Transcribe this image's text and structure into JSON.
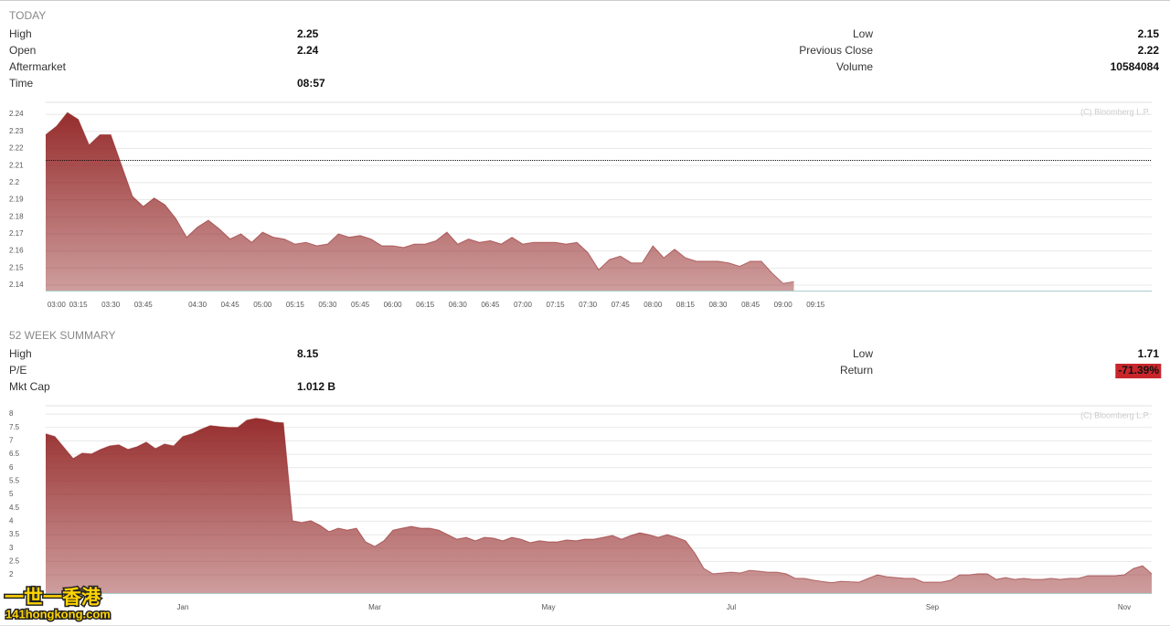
{
  "today": {
    "title": "TODAY",
    "left": [
      {
        "label": "High",
        "value": 2.25
      },
      {
        "label": "Open",
        "value": 2.24
      },
      {
        "label": "Aftermarket"
      },
      {
        "label": "Time",
        "value": "08:57"
      }
    ],
    "right": [
      {
        "label": "Low",
        "value": 2.15
      },
      {
        "label": "Previous Close",
        "value": 2.22
      },
      {
        "label": "Volume",
        "value": 10584084
      }
    ]
  },
  "summary": {
    "title": "52 WEEK SUMMARY",
    "left": [
      {
        "label": "High",
        "value": 8.15
      },
      {
        "label": "P/E"
      },
      {
        "label": "Mkt Cap",
        "value": "1.012 B"
      }
    ],
    "right": [
      {
        "label": "Low",
        "value": 1.71
      },
      {
        "label": "Return",
        "value": "-71.39%",
        "background": "#c9262c"
      }
    ]
  },
  "watermark": {
    "line1": "一世一香港",
    "line2": "141hongkong.com"
  },
  "chart_data": [
    {
      "type": "area",
      "source": "(C) Bloomberg L.P.",
      "color": "#932626",
      "grid": true,
      "categories": [
        null,
        "03:00",
        null,
        "03:15",
        null,
        null,
        "03:30",
        null,
        null,
        "03:45",
        null,
        null,
        null,
        null,
        "04:30",
        null,
        null,
        "04:45",
        null,
        null,
        "05:00",
        null,
        null,
        "05:15",
        null,
        null,
        "05:30",
        null,
        null,
        "05:45",
        null,
        null,
        "06:00",
        null,
        null,
        "06:15",
        null,
        null,
        "06:30",
        null,
        null,
        "06:45",
        null,
        null,
        "07:00",
        null,
        null,
        "07:15",
        null,
        null,
        "07:30",
        null,
        null,
        "07:45",
        null,
        null,
        "08:00",
        null,
        null,
        "08:15",
        null,
        null,
        "08:30",
        null,
        null,
        "08:45",
        null,
        null,
        "09:00",
        null,
        null,
        "09:15",
        null,
        null,
        null,
        null,
        null,
        null,
        null,
        null,
        null,
        null,
        null,
        null,
        null,
        null,
        null,
        null,
        null,
        null,
        null,
        null,
        null,
        null,
        null,
        null,
        null,
        null,
        null,
        null,
        null,
        null,
        null
      ],
      "values": [
        2.228,
        2.233,
        2.241,
        2.237,
        2.222,
        2.228,
        2.228,
        2.21,
        2.192,
        2.186,
        2.191,
        2.187,
        2.179,
        2.168,
        2.174,
        2.178,
        2.173,
        2.167,
        2.17,
        2.165,
        2.171,
        2.168,
        2.167,
        2.164,
        2.165,
        2.163,
        2.164,
        2.17,
        2.168,
        2.169,
        2.167,
        2.163,
        2.163,
        2.162,
        2.164,
        2.164,
        2.166,
        2.171,
        2.164,
        2.167,
        2.165,
        2.166,
        2.164,
        2.168,
        2.164,
        2.165,
        2.165,
        2.165,
        2.164,
        2.165,
        2.159,
        2.149,
        2.155,
        2.157,
        2.153,
        2.153,
        2.163,
        2.156,
        2.161,
        2.156,
        2.154,
        2.154,
        2.154,
        2.153,
        2.151,
        2.154,
        2.154,
        2.147,
        2.141,
        2.142,
        null,
        null,
        null,
        null,
        null,
        null,
        null,
        null,
        null,
        null,
        null,
        null,
        null,
        null,
        null,
        null,
        null,
        null,
        null,
        null,
        null,
        null,
        null,
        null,
        null,
        null,
        null,
        null,
        null,
        null,
        null,
        null,
        null
      ],
      "reference_line": 2.213,
      "ylim": [
        2.1368,
        2.247
      ],
      "yticks": [
        2.14,
        2.15,
        2.16,
        2.17,
        2.18,
        2.19,
        2.2,
        2.21,
        2.22,
        2.23,
        2.24
      ]
    },
    {
      "type": "area",
      "source": "(C) Bloomberg L.P.",
      "color": "#932626",
      "grid": true,
      "categories": [
        null,
        null,
        null,
        null,
        null,
        null,
        null,
        null,
        null,
        null,
        null,
        null,
        null,
        null,
        null,
        "Jan",
        null,
        null,
        null,
        null,
        null,
        null,
        null,
        null,
        null,
        null,
        null,
        null,
        null,
        null,
        null,
        null,
        null,
        null,
        null,
        null,
        "Mar",
        null,
        null,
        null,
        null,
        null,
        null,
        null,
        null,
        null,
        null,
        null,
        null,
        null,
        null,
        null,
        null,
        null,
        null,
        "May",
        null,
        null,
        null,
        null,
        null,
        null,
        null,
        null,
        null,
        null,
        null,
        null,
        null,
        null,
        null,
        null,
        null,
        null,
        null,
        "Jul",
        null,
        null,
        null,
        null,
        null,
        null,
        null,
        null,
        null,
        null,
        null,
        null,
        null,
        null,
        null,
        null,
        null,
        null,
        null,
        null,
        null,
        "Sep",
        null,
        null,
        null,
        null,
        null,
        null,
        null,
        null,
        null,
        null,
        null,
        null,
        null,
        null,
        null,
        null,
        null,
        null,
        null,
        null,
        "Nov",
        null,
        null,
        null
      ],
      "values": [
        7.26,
        7.16,
        6.75,
        6.34,
        6.54,
        6.51,
        6.68,
        6.81,
        6.85,
        6.68,
        6.78,
        6.95,
        6.71,
        6.88,
        6.81,
        7.16,
        7.26,
        7.43,
        7.57,
        7.53,
        7.5,
        7.5,
        7.77,
        7.84,
        7.8,
        7.7,
        7.67,
        4.02,
        3.95,
        4.02,
        3.85,
        3.61,
        3.74,
        3.67,
        3.74,
        3.23,
        3.06,
        3.27,
        3.67,
        3.74,
        3.81,
        3.74,
        3.74,
        3.67,
        3.5,
        3.33,
        3.4,
        3.27,
        3.4,
        3.37,
        3.27,
        3.4,
        3.33,
        3.2,
        3.27,
        3.23,
        3.23,
        3.3,
        3.27,
        3.33,
        3.33,
        3.4,
        3.47,
        3.33,
        3.47,
        3.57,
        3.5,
        3.4,
        3.5,
        3.4,
        3.27,
        2.82,
        2.24,
        2.04,
        2.07,
        2.1,
        2.07,
        2.17,
        2.14,
        2.1,
        2.1,
        2.04,
        1.87,
        1.87,
        1.8,
        1.75,
        1.71,
        1.76,
        1.74,
        1.73,
        1.87,
        2.0,
        1.93,
        1.9,
        1.87,
        1.87,
        1.73,
        1.73,
        1.73,
        1.8,
        2.0,
        2.0,
        2.04,
        2.04,
        1.83,
        1.9,
        1.83,
        1.87,
        1.83,
        1.83,
        1.87,
        1.83,
        1.87,
        1.87,
        1.97,
        1.97,
        1.97,
        1.97,
        2.0,
        2.24,
        2.34,
        2.04
      ],
      "ylim": [
        1.32,
        8.31
      ],
      "yticks": [
        2,
        2.5,
        3,
        3.5,
        4,
        4.5,
        5,
        5.5,
        6,
        6.5,
        7,
        7.5,
        8
      ]
    }
  ]
}
